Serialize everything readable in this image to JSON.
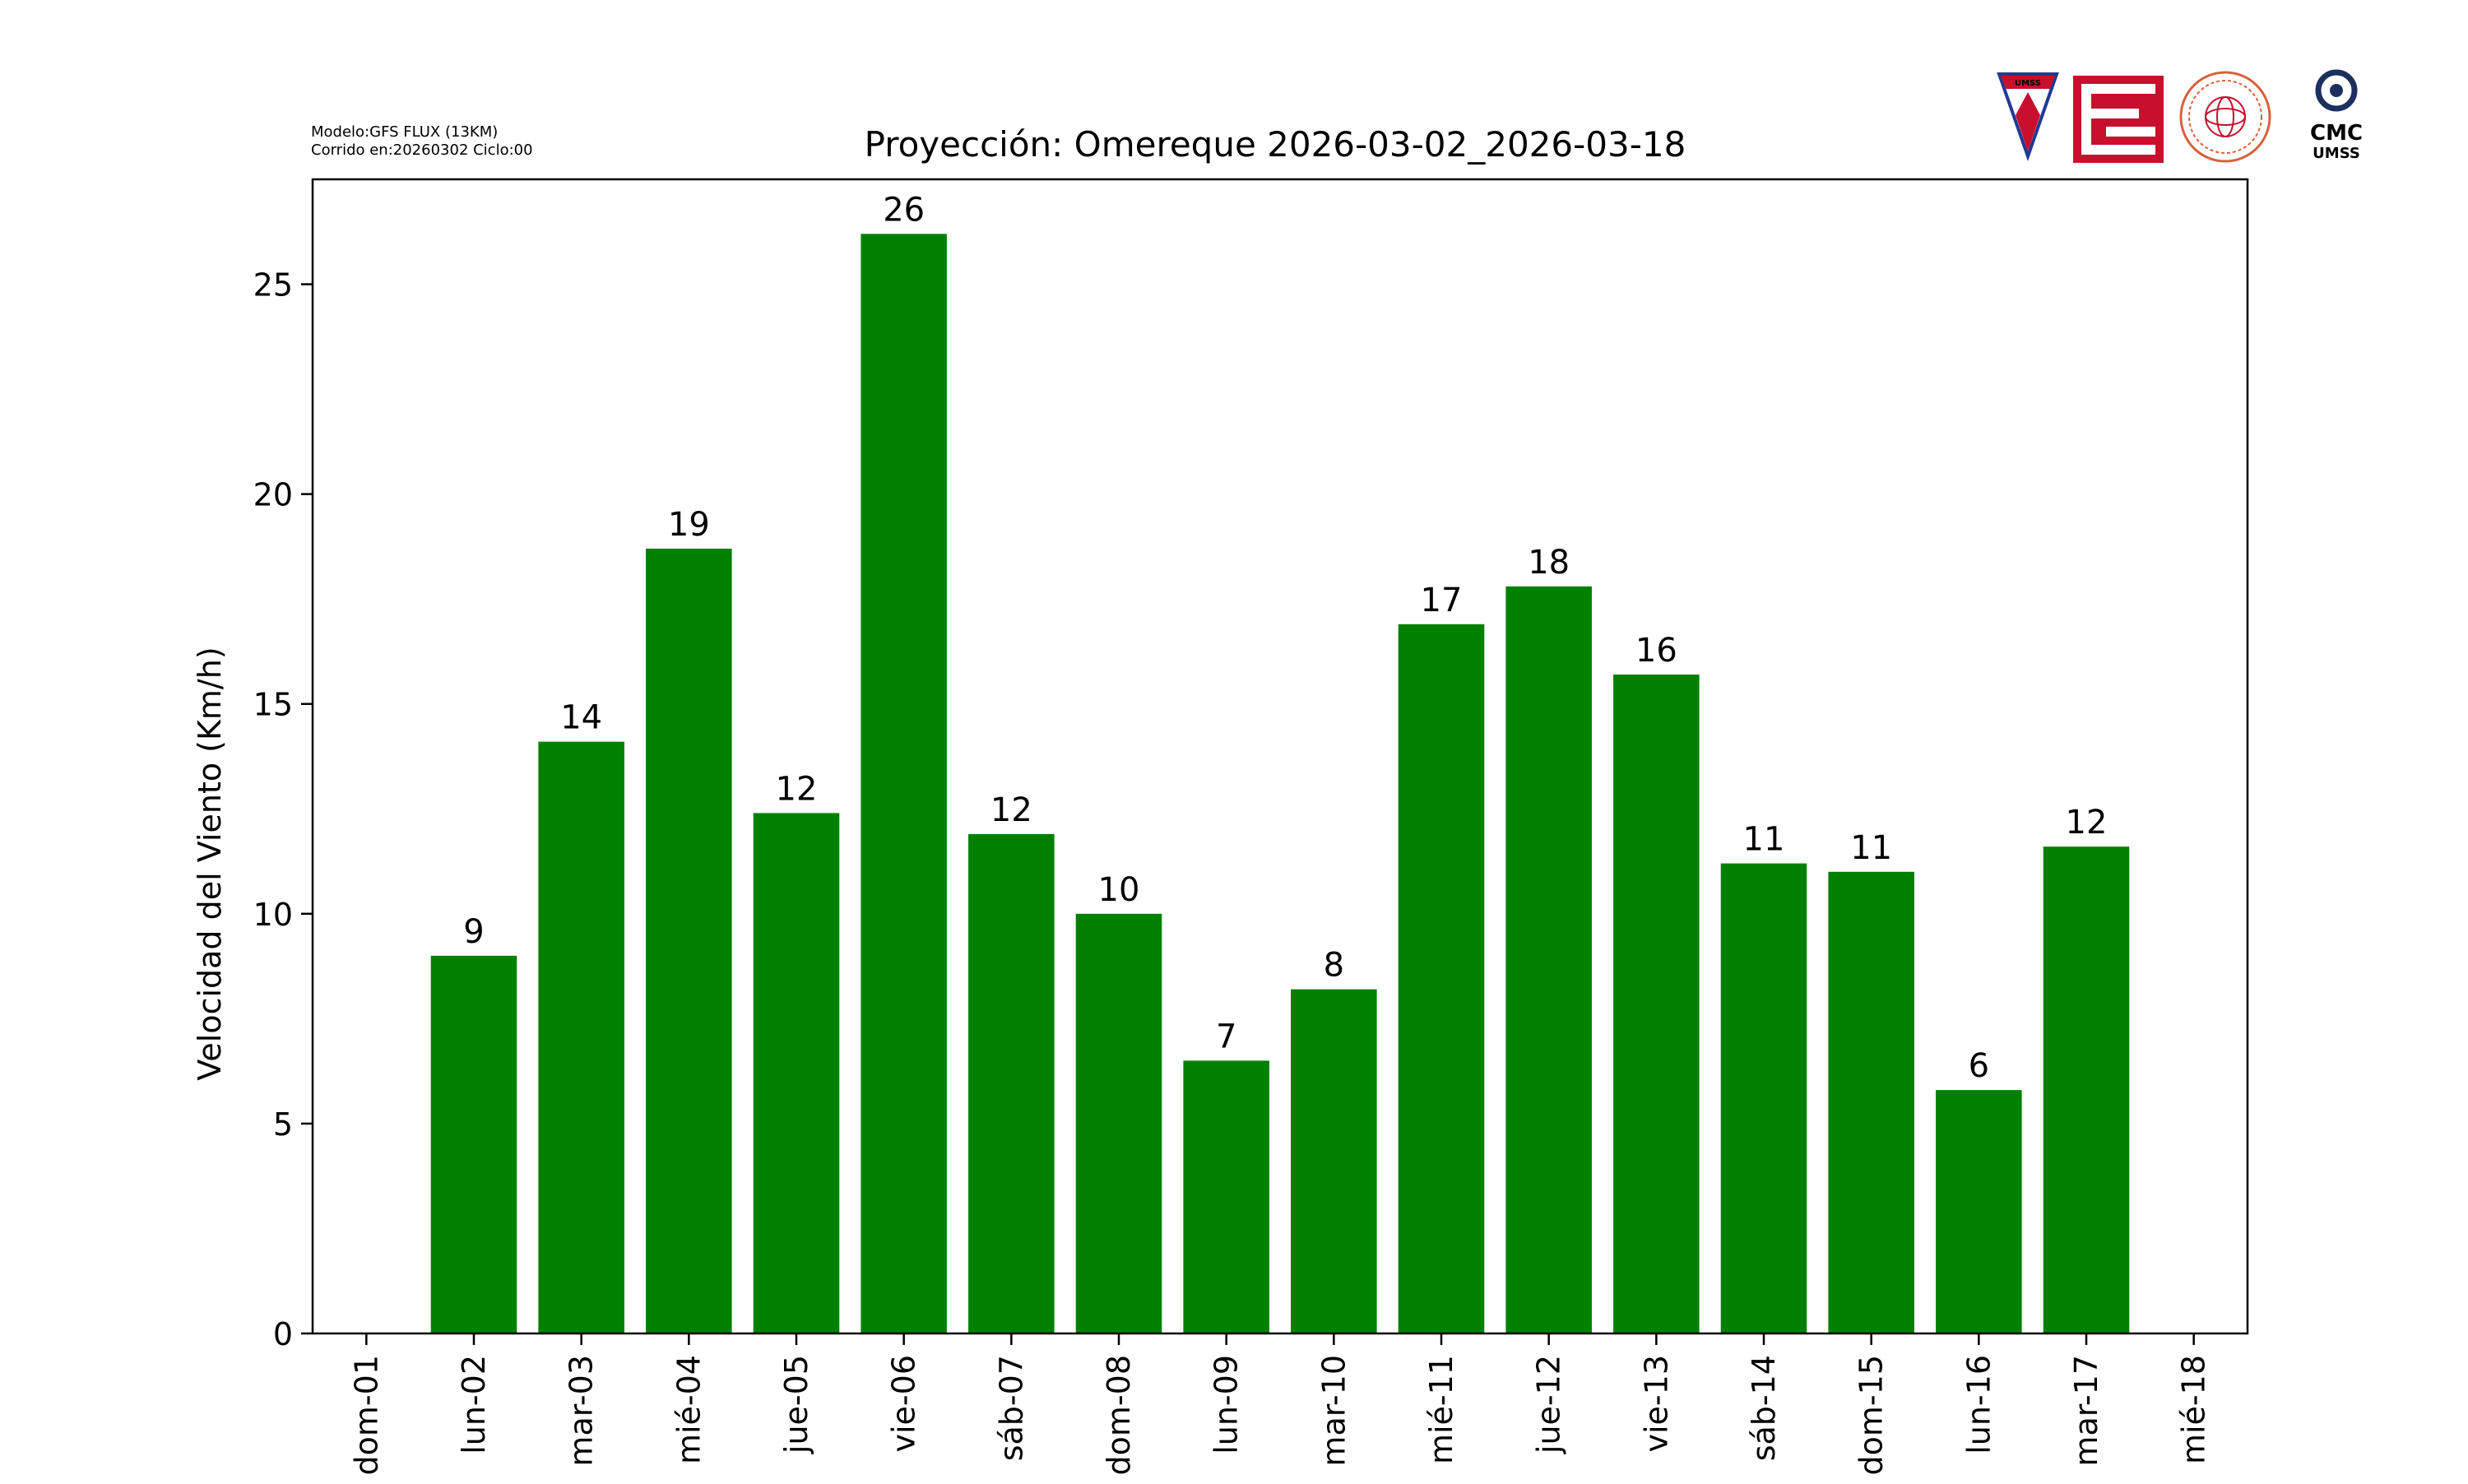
{
  "header": {
    "model_line": "Modelo:GFS FLUX (13KM)",
    "run_line": "Corrido en:20260302 Ciclo:00"
  },
  "logos": {
    "umss_shield_text": "UMSS",
    "cmc_text": "CMC",
    "cmc_sub": "UMSS"
  },
  "colors": {
    "bar": "#008000",
    "umss_red": "#c8102e",
    "umss_blue": "#1f3a93",
    "cmc_navy": "#1c2f5e"
  },
  "chart_data": {
    "type": "bar",
    "title": "Proyección: Omereque  2026-03-02_2026-03-18",
    "xlabel": "",
    "ylabel": "Velocidad del Viento (Km/h)",
    "ylim": [
      0,
      27.5
    ],
    "yticks": [
      0,
      5,
      10,
      15,
      20,
      25
    ],
    "x_tick_labels": [
      "dom-01",
      "lun-02",
      "mar-03",
      "mié-04",
      "jue-05",
      "vie-06",
      "sáb-07",
      "dom-08",
      "lun-09",
      "mar-10",
      "mié-11",
      "jue-12",
      "vie-13",
      "sáb-14",
      "dom-15",
      "lun-16",
      "mar-17",
      "mié-18"
    ],
    "categories": [
      "lun-02",
      "mar-03",
      "mié-04",
      "jue-05",
      "vie-06",
      "sáb-07",
      "dom-08",
      "lun-09",
      "mar-10",
      "mié-11",
      "jue-12",
      "vie-13",
      "sáb-14",
      "dom-15",
      "lun-16",
      "mar-17"
    ],
    "values": [
      9.0,
      14.1,
      18.7,
      12.4,
      26.2,
      11.9,
      10.0,
      6.5,
      8.2,
      16.9,
      17.8,
      15.7,
      11.2,
      11.0,
      5.8,
      11.6
    ],
    "data_labels": [
      "9",
      "14",
      "19",
      "12",
      "26",
      "12",
      "10",
      "7",
      "8",
      "17",
      "18",
      "16",
      "11",
      "11",
      "6",
      "12"
    ],
    "grid": false,
    "legend": "none"
  }
}
